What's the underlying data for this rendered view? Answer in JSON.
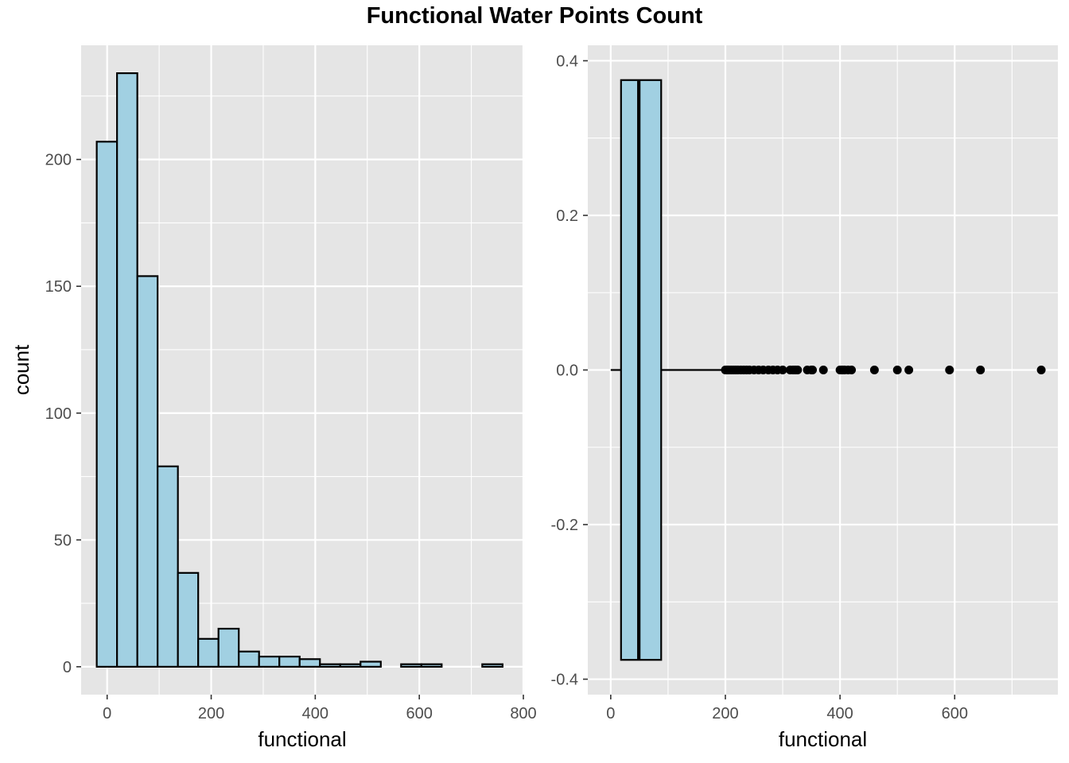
{
  "title": "Functional Water Points Count",
  "colors": {
    "panel_bg": "#e5e5e5",
    "grid": "#ffffff",
    "fill": "#a1d0e2",
    "outline": "#000000",
    "tick_text": "#4d4d4d"
  },
  "chart_data": [
    {
      "type": "bar",
      "subtype": "histogram",
      "xlabel": "functional",
      "ylabel": "count",
      "xlim": [
        -50,
        800
      ],
      "ylim": [
        -11,
        245
      ],
      "xticks": [
        0,
        200,
        400,
        600,
        800
      ],
      "xtick_labels": [
        "0",
        "200",
        "400",
        "600",
        "800"
      ],
      "yticks": [
        0,
        50,
        100,
        150,
        200
      ],
      "ytick_labels": [
        "0",
        "50",
        "100",
        "150",
        "200"
      ],
      "bin_width": 39,
      "bins_start": [
        -20,
        19,
        58,
        97,
        136,
        175,
        214,
        253,
        292,
        331,
        370,
        409,
        448,
        487,
        526,
        565,
        604,
        643,
        682,
        721
      ],
      "values": [
        207,
        234,
        154,
        79,
        37,
        11,
        15,
        6,
        4,
        4,
        3,
        1,
        1,
        2,
        0,
        1,
        1,
        0,
        0,
        1
      ],
      "grid": true
    },
    {
      "type": "boxplot",
      "xlabel": "functional",
      "ylabel": "",
      "xlim": [
        -40,
        780
      ],
      "ylim": [
        -0.42,
        0.42
      ],
      "xticks": [
        0,
        200,
        400,
        600
      ],
      "xtick_labels": [
        "0",
        "200",
        "400",
        "600"
      ],
      "yticks": [
        -0.4,
        -0.2,
        0.0,
        0.2,
        0.4
      ],
      "ytick_labels": [
        "-0.4",
        "-0.2",
        "0.0",
        "0.2",
        "0.4"
      ],
      "box": {
        "whisker_low": 0,
        "q1": 18,
        "median": 49,
        "q3": 88,
        "whisker_high": 194,
        "half_height": 0.375
      },
      "outliers": [
        200,
        203,
        206,
        210,
        214,
        218,
        222,
        227,
        232,
        237,
        242,
        250,
        258,
        266,
        275,
        283,
        291,
        300,
        313,
        318,
        322,
        326,
        343,
        350,
        352,
        371,
        400,
        404,
        408,
        414,
        420,
        460,
        500,
        520,
        591,
        645,
        751
      ],
      "grid": true
    }
  ]
}
